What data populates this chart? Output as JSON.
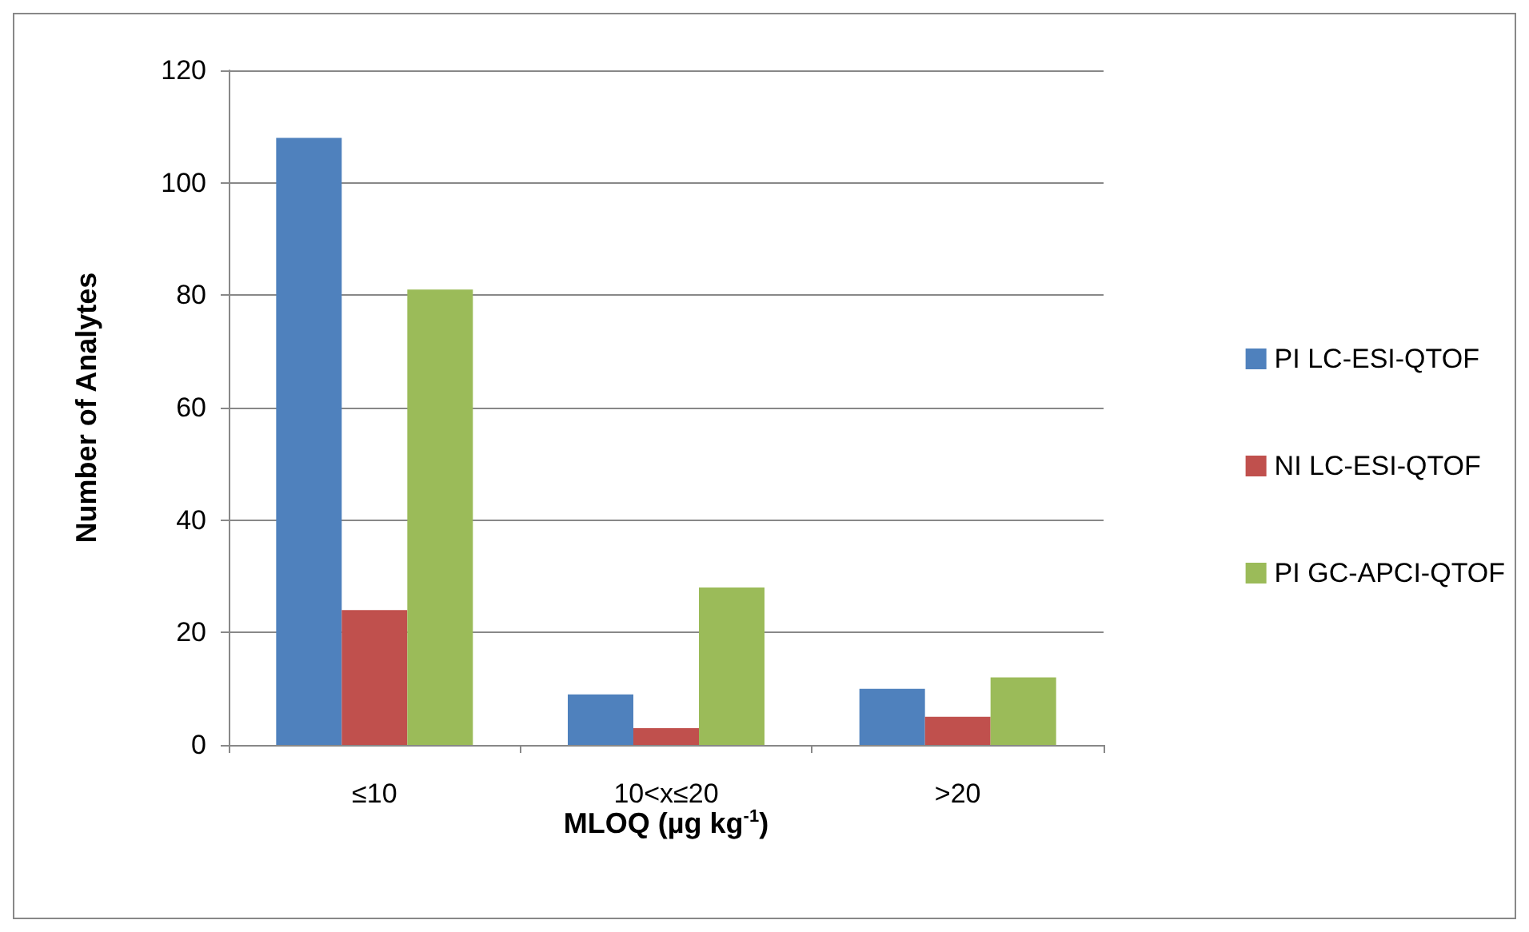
{
  "chart_data": {
    "type": "bar",
    "xlabel": "MLOQ (µg kg$^{-1}$)",
    "ylabel": "Number of Analytes",
    "categories": [
      "≤10",
      "10<x≤20",
      ">20"
    ],
    "series": [
      {
        "name": "PI LC-ESI-QTOF",
        "color": "#4f81bd",
        "values": [
          108,
          9,
          10
        ]
      },
      {
        "name": "NI LC-ESI-QTOF",
        "color": "#c0504d",
        "values": [
          24,
          3,
          5
        ]
      },
      {
        "name": "PI GC-APCI-QTOF",
        "color": "#9bbb59",
        "values": [
          81,
          28,
          12
        ]
      }
    ],
    "ylim": [
      0,
      120
    ],
    "yticks": [
      0,
      20,
      40,
      60,
      80,
      100,
      120
    ],
    "grid": "y",
    "legend": "right"
  }
}
